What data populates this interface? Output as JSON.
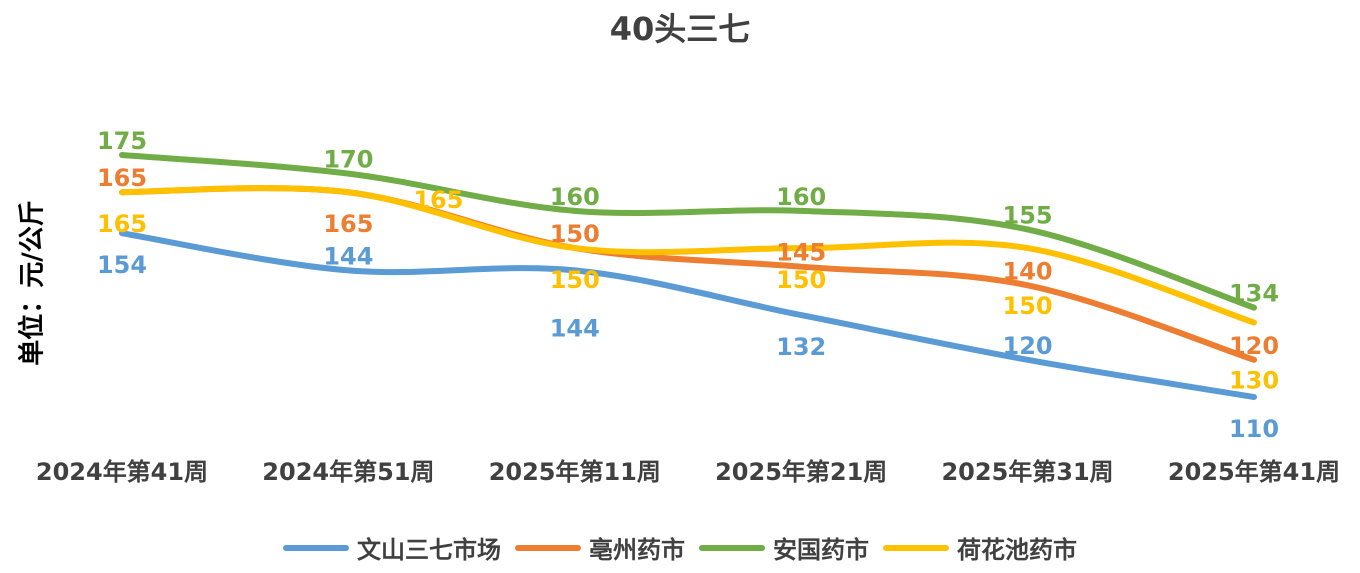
{
  "chart_data": {
    "type": "line",
    "title": "40头三七",
    "ylabel": "单位：元/公斤",
    "xlabel": "",
    "categories": [
      "2024年第41周",
      "2024年第51周",
      "2025年第11周",
      "2025年第21周",
      "2025年第31周",
      "2025年第41周"
    ],
    "smooth": true,
    "grid": false,
    "legend_position": "bottom",
    "series": [
      {
        "name": "文山三七市场",
        "color": "#5B9BD5",
        "values": [
          154,
          144,
          144,
          132,
          120,
          110
        ]
      },
      {
        "name": "亳州药市",
        "color": "#ED7D31",
        "values": [
          165,
          165,
          150,
          145,
          140,
          120
        ]
      },
      {
        "name": "安国药市",
        "color": "#70AD47",
        "values": [
          175,
          170,
          160,
          160,
          155,
          134
        ]
      },
      {
        "name": "荷花池药市",
        "color": "#FFC000",
        "values": [
          165,
          165,
          150,
          150,
          150,
          130
        ]
      }
    ]
  }
}
